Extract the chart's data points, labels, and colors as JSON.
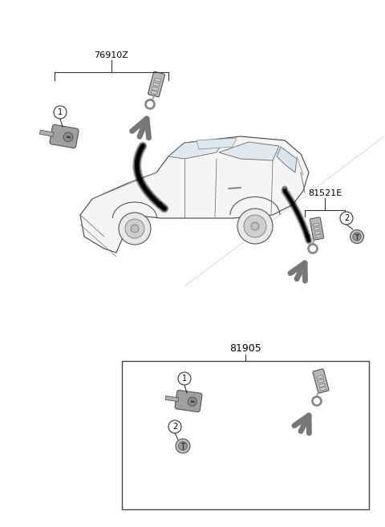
{
  "bg_color": "#ffffff",
  "label_76910Z": "76910Z",
  "label_81521E": "81521E",
  "label_81905": "81905",
  "fig_width": 4.8,
  "fig_height": 6.57,
  "dpi": 100,
  "line_color": "#333333",
  "part_color": "#888888",
  "part_dark": "#555555",
  "part_light": "#cccccc",
  "key_blade_color": "#777777",
  "fob_color": "#999999",
  "fob_outline": "#444444",
  "arrow_color": "#111111",
  "box_color": "#444444",
  "bracket_color": "#333333",
  "callout_fontsize": 7,
  "label_fontsize": 8
}
